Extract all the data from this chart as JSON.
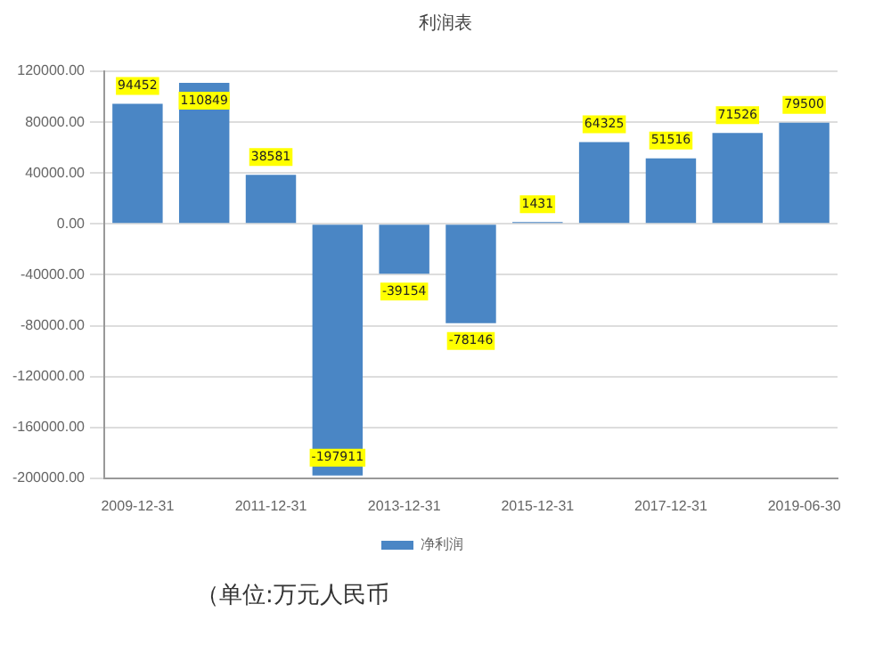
{
  "chart_data": {
    "type": "bar",
    "title": "利润表",
    "categories": [
      "2009-12-31",
      null,
      "2011-12-31",
      null,
      "2013-12-31",
      null,
      "2015-12-31",
      null,
      "2017-12-31",
      null,
      "2019-06-30"
    ],
    "series": [
      {
        "name": "净利润",
        "color": "#4a86c5",
        "values": [
          94452,
          110849,
          38581,
          -197911,
          -39154,
          -78146,
          1431,
          64325,
          51516,
          71526,
          79500
        ]
      }
    ],
    "ylim": [
      -200000,
      120000
    ],
    "yticks": [
      {
        "value": -200000,
        "label": "-200000.00"
      },
      {
        "value": -160000,
        "label": "-160000.00"
      },
      {
        "value": -120000,
        "label": "-120000.00"
      },
      {
        "value": -80000,
        "label": "-80000.00"
      },
      {
        "value": -40000,
        "label": "-40000.00"
      },
      {
        "value": 0,
        "label": "0.00"
      },
      {
        "value": 40000,
        "label": "40000.00"
      },
      {
        "value": 80000,
        "label": "80000.00"
      },
      {
        "value": 120000,
        "label": "120000.00"
      }
    ],
    "grid": "y",
    "legend": "bottom",
    "data_labels": true,
    "annotations": [
      "（单位:万元人民币"
    ]
  }
}
